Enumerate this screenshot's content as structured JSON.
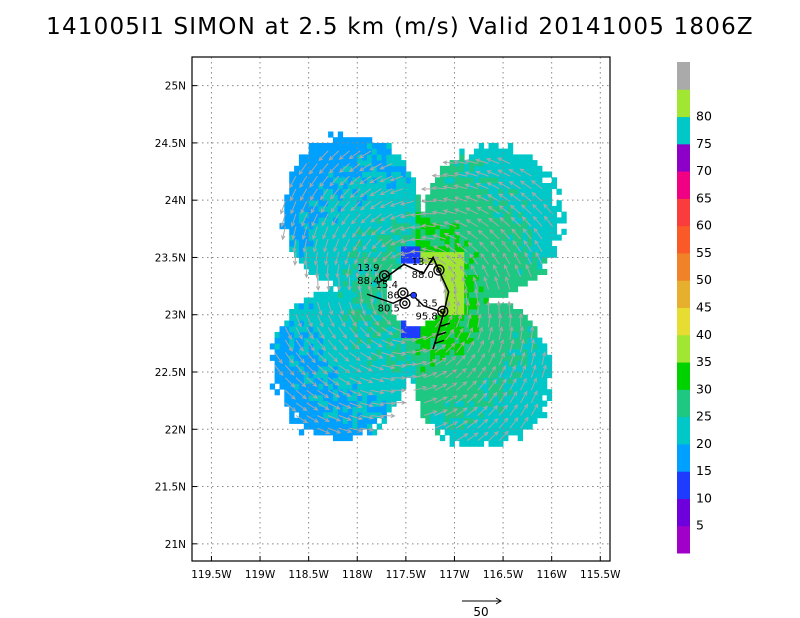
{
  "title": "141005I1 SIMON at 2.5 km (m/s) Valid 20141005 1806Z",
  "colors": {
    "c0": "#a000c8",
    "c5": "#6e00dc",
    "c10": "#1e3cff",
    "c15": "#00a0ff",
    "c20": "#00c8c8",
    "c25": "#1ec882",
    "c30": "#00d200",
    "c35": "#a0e632",
    "c40": "#e6dc32",
    "c45": "#e6af2d",
    "c50": "#f08228",
    "c55": "#fa5a28",
    "c60": "#fa3c3c",
    "c65": "#f00082",
    "c70": "#8c00c8",
    "c75": "#00c8c8",
    "c80": "#a0e632",
    "c85": "#aaaaaa",
    "vector": "#a8a8a8",
    "grid": "#888888"
  },
  "chart_data": {
    "type": "heatmap",
    "title": "141005I1 SIMON at 2.5 km (m/s) Valid 20141005 1806Z",
    "x_ticks": [
      "119.5W",
      "119W",
      "118.5W",
      "118W",
      "117.5W",
      "117W",
      "116.5W",
      "116W",
      "115.5W"
    ],
    "y_ticks": [
      "25N",
      "24.5N",
      "24N",
      "23.5N",
      "23N",
      "22.5N",
      "22N",
      "21.5N",
      "21N"
    ],
    "xlim": [
      -119.7,
      -115.4
    ],
    "ylim": [
      20.85,
      25.25
    ],
    "grid": true,
    "colorbar": {
      "levels": [
        0,
        5,
        10,
        15,
        20,
        25,
        30,
        35,
        40,
        45,
        50,
        55,
        60,
        65,
        70,
        75,
        80,
        85
      ],
      "labels": [
        "5",
        "10",
        "15",
        "20",
        "25",
        "30",
        "35",
        "40",
        "45",
        "50",
        "55",
        "60",
        "65",
        "70",
        "75",
        "80"
      ],
      "placement": "right"
    },
    "vector_reference": {
      "label": "50",
      "value": 50
    },
    "flight_legs": [
      {
        "label1": "13.9",
        "label2": "88.4",
        "lon": -117.72,
        "lat": 23.34
      },
      {
        "label1": "13.2",
        "label2": "88.0",
        "lon": -117.16,
        "lat": 23.39
      },
      {
        "label1": "15.4",
        "label2": "",
        "lon": -117.53,
        "lat": 23.19
      },
      {
        "label1": "86",
        "label2": "80.5",
        "lon": -117.51,
        "lat": 23.1
      },
      {
        "label1": "13.5",
        "label2": "95.8",
        "lon": -117.12,
        "lat": 23.03
      }
    ],
    "storm_center": {
      "lon": -117.42,
      "lat": 23.17
    },
    "wind_field": {
      "region": "quad-lobed annulus around storm center",
      "max_speed_ms": 36,
      "min_speed_ms": 10
    }
  }
}
